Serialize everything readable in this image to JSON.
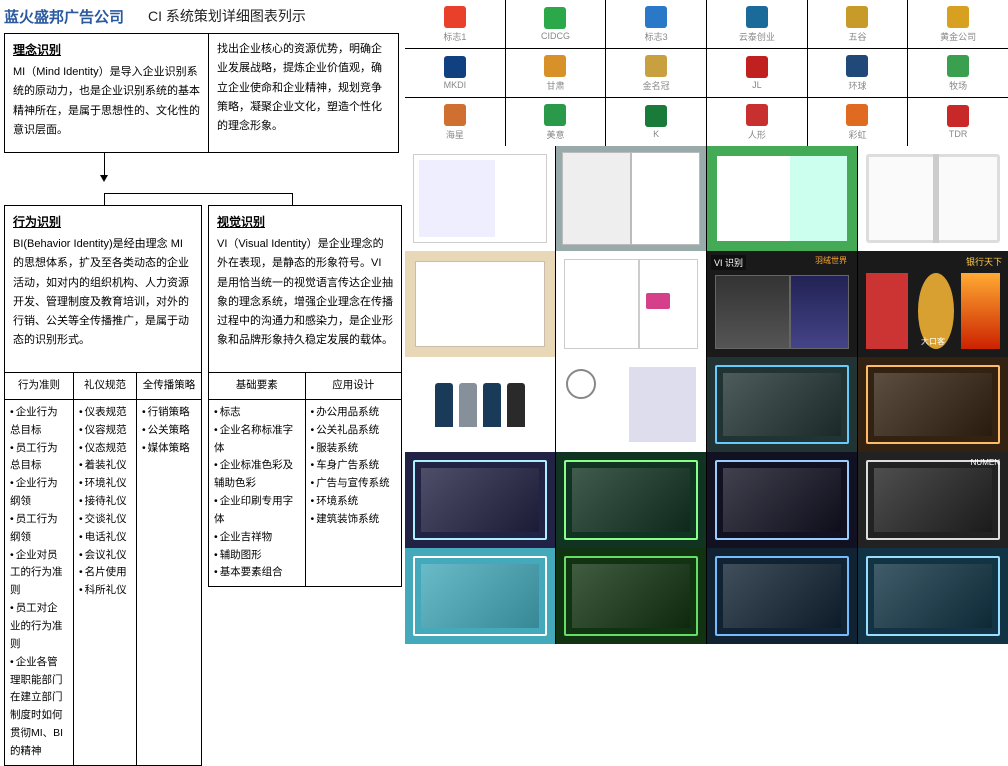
{
  "header": {
    "company": "蓝火盛邦广告公司",
    "title": "CI 系统策划详细图表列示"
  },
  "mi": {
    "heading": "理念识别",
    "body": "MI（Mind Identity）是导入企业识别系统的原动力，也是企业识别系统的基本精神所在，是属于思想性的、文化性的意识层面。"
  },
  "goal": {
    "body": "找出企业核心的资源优势，明确企业发展战略，提炼企业价值观，确立企业使命和企业精神，规划竞争策略，凝聚企业文化，塑造个性化的理念形象。"
  },
  "bi": {
    "heading": "行为识别",
    "body": "BI(Behavior Identity)是经由理念 MI 的思想体系，扩及至各类动态的企业活动，如对内的组织机构、人力资源开发、管理制度及教育培训，对外的行销、公关等全传播推广，是属于动态的识别形式。"
  },
  "vi": {
    "heading": "视觉识别",
    "body": "VI（Visual Identity）是企业理念的外在表现，是静态的形象符号。VI 是用恰当统一的视觉语言传达企业抽象的理念系统，增强企业理念在传播过程中的沟通力和感染力，是企业形象和品牌形象持久稳定发展的载体。"
  },
  "bi_table": {
    "headers": [
      "行为准则",
      "礼仪规范",
      "全传播策略"
    ],
    "col1": [
      "企业行为总目标|员工行为总目标",
      "企业行为纲领|员工行为纲领",
      "企业对员工的行为准则|员工对企业的行为准则",
      "企业各管理职能部门在建立部门制度时如何贯彻MI、BI的精神"
    ],
    "col2": [
      "仪表规范",
      "仪容规范",
      "仪态规范",
      "着装礼仪",
      "环境礼仪",
      "接待礼仪",
      "交谈礼仪",
      "电话礼仪",
      "会议礼仪",
      "名片使用",
      "科所礼仪"
    ],
    "col3": [
      "行销策略",
      "公关策略",
      "媒体策略"
    ]
  },
  "vi_table": {
    "headers": [
      "基础要素",
      "应用设计"
    ],
    "col1": [
      "标志",
      "企业名称标准字体",
      "企业标准色彩及辅助色彩",
      "企业印刷专用字体",
      "企业吉祥物",
      "辅助图形",
      "基本要素组合"
    ],
    "col2": [
      "办公用品系统",
      "公关礼品系统",
      "服装系统",
      "车身广告系统",
      "广告与宣传系统",
      "环境系统",
      "建筑装饰系统"
    ]
  },
  "logos": [
    {
      "name": "标志1",
      "color": "#e8402a"
    },
    {
      "name": "CIDCG",
      "color": "#2aa84a"
    },
    {
      "name": "标志3",
      "color": "#2a78c8"
    },
    {
      "name": "云泰创业",
      "color": "#1a6a9a"
    },
    {
      "name": "五谷",
      "color": "#c89a2a"
    },
    {
      "name": "黄金公司",
      "color": "#d8a020"
    },
    {
      "name": "MKDI",
      "color": "#104080"
    },
    {
      "name": "甘肃",
      "color": "#d89028"
    },
    {
      "name": "金名冠",
      "color": "#c8a040"
    },
    {
      "name": "JL",
      "color": "#c02020"
    },
    {
      "name": "环球",
      "color": "#204878"
    },
    {
      "name": "牧场",
      "color": "#3aa050"
    },
    {
      "name": "海星",
      "color": "#d07030"
    },
    {
      "name": "美意",
      "color": "#2a9a4a"
    },
    {
      "name": "K",
      "color": "#1a7a3a"
    },
    {
      "name": "人形",
      "color": "#c83030"
    },
    {
      "name": "彩虹",
      "color": "#e06a20"
    },
    {
      "name": "TDR",
      "color": "#c82828"
    }
  ],
  "uniforms": [
    "#1a3a5a",
    "#86909a",
    "#1a3a5a",
    "#2a2a2a"
  ],
  "colors": {
    "brand_text": "#2a5aa0",
    "border": "#000000",
    "page_bg": "#ffffff",
    "gallery_bg": "#000000"
  }
}
